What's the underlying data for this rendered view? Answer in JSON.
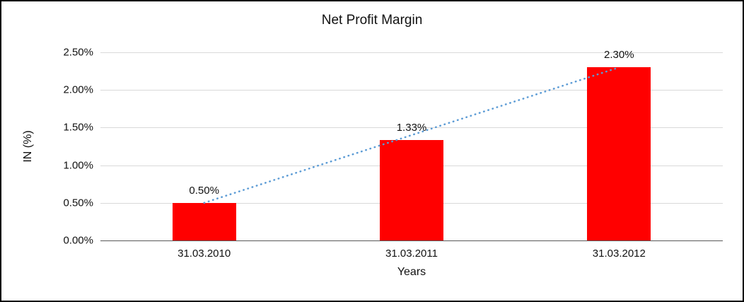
{
  "chart_data": {
    "type": "bar",
    "title": "Net Profit Margin",
    "xlabel": "Years",
    "ylabel": "IN (%)",
    "categories": [
      "31.03.2010",
      "31.03.2011",
      "31.03.2012"
    ],
    "series": [
      {
        "name": "Net Profit Margin",
        "values": [
          0.5,
          1.33,
          2.3
        ]
      }
    ],
    "value_labels": [
      "0.50%",
      "1.33%",
      "2.30%"
    ],
    "ylim": [
      0,
      2.5
    ],
    "ytick_step": 0.5,
    "ytick_labels": [
      "0.00%",
      "0.50%",
      "1.00%",
      "1.50%",
      "2.00%",
      "2.50%"
    ],
    "grid": true,
    "legend_position": "none",
    "bar_color": "#ff0000",
    "trendline": {
      "type": "linear",
      "style": "dotted",
      "color": "#5b9bd5"
    }
  }
}
